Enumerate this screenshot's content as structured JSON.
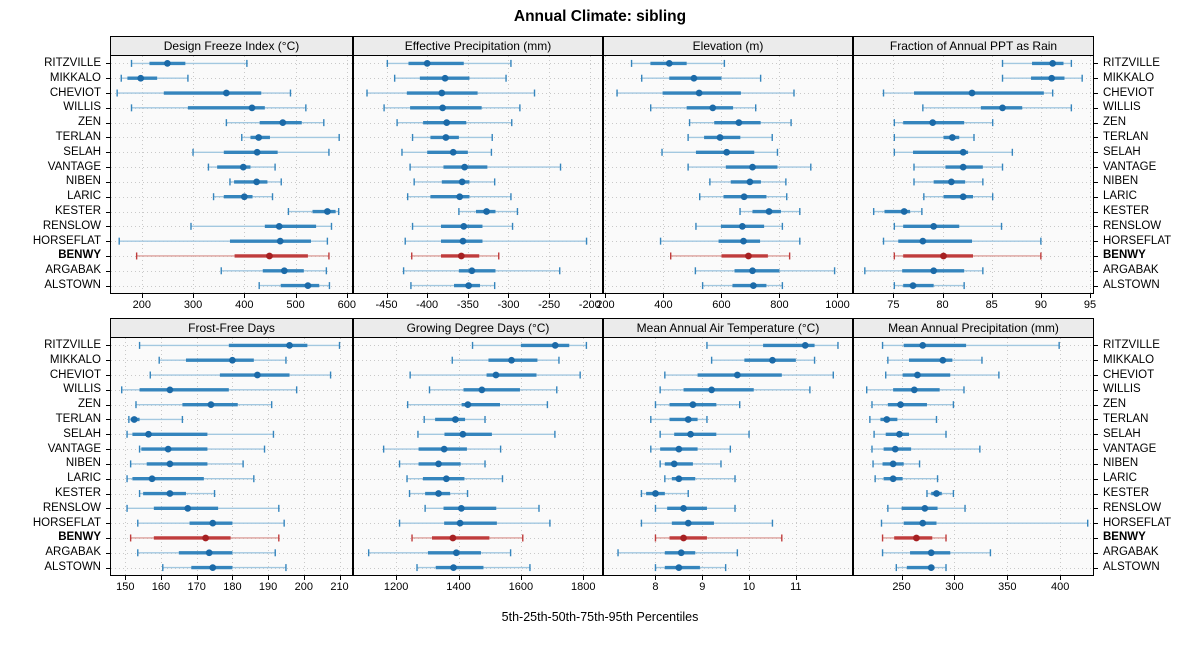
{
  "title": "Annual Climate: sibling",
  "caption": "5th-25th-50th-75th-95th Percentiles",
  "colors": {
    "panel_bg": "#fafafa",
    "strip_bg": "#ebebeb",
    "grid": "#c9c9c9",
    "border": "#000000",
    "blue_dot": "#1b6aa8",
    "blue_mid": "#3585bd",
    "blue_light": "#a3c8e0",
    "red_dot": "#a62022",
    "red_mid": "#c03c3c",
    "red_light": "#dca09b"
  },
  "chart_data": {
    "type": "scatter",
    "subtype": "trellis-percentile-dotplot",
    "title": "Annual Climate: sibling",
    "xlabel": "5th-25th-50th-75th-95th Percentiles",
    "percentiles": [
      5,
      25,
      50,
      75,
      95
    ],
    "grid": "dotted",
    "layout": {
      "rows": 2,
      "cols": 4,
      "station_labels": "left-and-right"
    },
    "highlight": "BENWY",
    "stations": [
      "RITZVILLE",
      "MIKKALO",
      "CHEVIOT",
      "WILLIS",
      "ZEN",
      "TERLAN",
      "SELAH",
      "VANTAGE",
      "NIBEN",
      "LARIC",
      "KESTER",
      "RENSLOW",
      "HORSEFLAT",
      "BENWY",
      "ARGABAK",
      "ALSTOWN"
    ],
    "panels": [
      {
        "title": "Design Freeze Index (°C)",
        "xlim": [
          140,
          610
        ],
        "ticks": [
          200,
          300,
          400,
          500,
          600
        ],
        "values": [
          [
            180,
            215,
            250,
            285,
            405
          ],
          [
            160,
            172,
            198,
            230,
            290
          ],
          [
            152,
            243,
            365,
            433,
            490
          ],
          [
            180,
            290,
            415,
            440,
            520
          ],
          [
            365,
            430,
            475,
            512,
            555
          ],
          [
            395,
            412,
            428,
            450,
            585
          ],
          [
            300,
            360,
            425,
            465,
            565
          ],
          [
            330,
            347,
            398,
            412,
            460
          ],
          [
            372,
            380,
            424,
            445,
            472
          ],
          [
            340,
            360,
            400,
            416,
            455
          ],
          [
            486,
            533,
            562,
            578,
            584
          ],
          [
            296,
            440,
            468,
            540,
            570
          ],
          [
            156,
            372,
            470,
            530,
            562
          ],
          [
            190,
            381,
            449,
            524,
            565
          ],
          [
            355,
            436,
            478,
            516,
            560
          ],
          [
            429,
            471,
            524,
            546,
            566
          ]
        ]
      },
      {
        "title": "Effective Precipitation (mm)",
        "xlim": [
          -490,
          -185
        ],
        "ticks": [
          -450,
          -400,
          -350,
          -300,
          -250,
          -200
        ],
        "values": [
          [
            -449,
            -423,
            -400,
            -355,
            -297
          ],
          [
            -440,
            -409,
            -378,
            -348,
            -303
          ],
          [
            -474,
            -425,
            -382,
            -338,
            -268
          ],
          [
            -453,
            -421,
            -381,
            -333,
            -286
          ],
          [
            -437,
            -405,
            -376,
            -352,
            -296
          ],
          [
            -418,
            -396,
            -377,
            -361,
            -320
          ],
          [
            -431,
            -400,
            -368,
            -350,
            -321
          ],
          [
            -421,
            -380,
            -354,
            -326,
            -236
          ],
          [
            -416,
            -382,
            -357,
            -348,
            -317
          ],
          [
            -424,
            -396,
            -360,
            -348,
            -297
          ],
          [
            -361,
            -340,
            -327,
            -316,
            -289
          ],
          [
            -418,
            -383,
            -355,
            -332,
            -295
          ],
          [
            -427,
            -383,
            -356,
            -332,
            -204
          ],
          [
            -419,
            -383,
            -358,
            -336,
            -312
          ],
          [
            -429,
            -361,
            -345,
            -316,
            -237
          ],
          [
            -420,
            -367,
            -349,
            -335,
            -317
          ]
        ]
      },
      {
        "title": "Elevation (m)",
        "xlim": [
          195,
          1050
        ],
        "ticks": [
          200,
          400,
          600,
          800,
          1000
        ],
        "values": [
          [
            290,
            355,
            420,
            480,
            610
          ],
          [
            325,
            420,
            505,
            600,
            735
          ],
          [
            240,
            397,
            523,
            667,
            850
          ],
          [
            356,
            480,
            570,
            640,
            718
          ],
          [
            490,
            575,
            660,
            735,
            840
          ],
          [
            485,
            540,
            595,
            665,
            775
          ],
          [
            395,
            512,
            618,
            713,
            793
          ],
          [
            485,
            615,
            707,
            793,
            908
          ],
          [
            560,
            632,
            698,
            736,
            822
          ],
          [
            525,
            607,
            678,
            755,
            825
          ],
          [
            664,
            707,
            764,
            805,
            870
          ],
          [
            512,
            598,
            672,
            747,
            810
          ],
          [
            390,
            590,
            676,
            733,
            870
          ],
          [
            425,
            600,
            693,
            760,
            835
          ],
          [
            510,
            645,
            707,
            800,
            990
          ],
          [
            535,
            638,
            710,
            755,
            810
          ]
        ]
      },
      {
        "title": "Fraction of Annual PPT as Rain",
        "xlim": [
          71,
          95.3
        ],
        "ticks": [
          75,
          80,
          85,
          90,
          95
        ],
        "values": [
          [
            86.1,
            89.1,
            91.2,
            92.3,
            93.1
          ],
          [
            86.1,
            89.0,
            91.1,
            92.4,
            94.2
          ],
          [
            74.0,
            77.1,
            83.0,
            90.3,
            91.2
          ],
          [
            78.0,
            83.9,
            86.1,
            88.1,
            93.1
          ],
          [
            75.1,
            76.0,
            79.0,
            82.2,
            85.1
          ],
          [
            75.1,
            80.1,
            81.0,
            81.7,
            83.2
          ],
          [
            75.1,
            77.0,
            82.1,
            82.6,
            87.1
          ],
          [
            77.1,
            80.3,
            82.1,
            84.1,
            86.1
          ],
          [
            77.1,
            79.1,
            80.9,
            82.3,
            84.1
          ],
          [
            78.1,
            80.1,
            82.1,
            83.1,
            85.1
          ],
          [
            73.0,
            74.1,
            76.1,
            76.7,
            77.9
          ],
          [
            75.1,
            76.0,
            79.1,
            81.7,
            86.0
          ],
          [
            74.0,
            75.5,
            78.0,
            83.0,
            90.0
          ],
          [
            75.1,
            76.0,
            80.1,
            83.1,
            90.0
          ],
          [
            72.1,
            75.9,
            79.1,
            82.2,
            84.1
          ],
          [
            75.1,
            76.0,
            77.0,
            79.1,
            82.2
          ]
        ]
      },
      {
        "title": "Frost-Free Days",
        "xlim": [
          146,
          213.5
        ],
        "ticks": [
          150,
          160,
          170,
          180,
          190,
          200,
          210
        ],
        "values": [
          [
            154,
            179,
            196,
            201,
            210
          ],
          [
            159.5,
            167,
            180,
            186,
            195
          ],
          [
            157,
            176.5,
            187,
            196,
            207.5
          ],
          [
            149,
            154,
            162.5,
            179,
            198
          ],
          [
            153,
            166,
            174,
            181.5,
            191
          ],
          [
            151,
            151.5,
            152.5,
            154,
            166
          ],
          [
            150.5,
            152,
            156.5,
            173,
            191.5
          ],
          [
            154,
            154.5,
            162,
            173,
            189
          ],
          [
            151.5,
            156,
            162.5,
            173,
            183
          ],
          [
            150.5,
            152,
            157.5,
            172,
            186
          ],
          [
            154,
            155,
            162.5,
            167,
            175
          ],
          [
            150.5,
            158,
            167.5,
            176,
            193
          ],
          [
            153.5,
            168,
            174.5,
            180,
            194.5
          ],
          [
            151.5,
            158,
            172.5,
            179.5,
            193
          ],
          [
            153.5,
            165,
            173.5,
            180,
            192
          ],
          [
            160.5,
            168.5,
            174.5,
            180,
            195
          ]
        ]
      },
      {
        "title": "Growing Degree Days (°C)",
        "xlim": [
          1065,
          1860
        ],
        "ticks": [
          1200,
          1400,
          1600,
          1800
        ],
        "values": [
          [
            1445,
            1600,
            1710,
            1755,
            1810
          ],
          [
            1380,
            1496,
            1570,
            1653,
            1722
          ],
          [
            1245,
            1490,
            1520,
            1650,
            1790
          ],
          [
            1307,
            1416,
            1475,
            1597,
            1715
          ],
          [
            1237,
            1410,
            1430,
            1533,
            1685
          ],
          [
            1290,
            1325,
            1390,
            1421,
            1485
          ],
          [
            1270,
            1355,
            1414,
            1507,
            1709
          ],
          [
            1160,
            1272,
            1354,
            1427,
            1535
          ],
          [
            1211,
            1272,
            1336,
            1407,
            1485
          ],
          [
            1235,
            1286,
            1361,
            1419,
            1541
          ],
          [
            1243,
            1293,
            1336,
            1373,
            1429
          ],
          [
            1293,
            1352,
            1409,
            1521,
            1658
          ],
          [
            1211,
            1354,
            1405,
            1523,
            1693
          ],
          [
            1251,
            1315,
            1382,
            1499,
            1606
          ],
          [
            1112,
            1302,
            1393,
            1472,
            1567
          ],
          [
            1267,
            1327,
            1384,
            1480,
            1629
          ]
        ]
      },
      {
        "title": "Mean Annual Air Temperature (°C)",
        "xlim": [
          6.9,
          12.2
        ],
        "ticks": [
          8,
          9,
          10,
          11
        ],
        "values": [
          [
            9.1,
            10.3,
            11.2,
            11.4,
            11.9
          ],
          [
            9.2,
            9.9,
            10.5,
            11.0,
            11.4
          ],
          [
            8.2,
            8.9,
            9.75,
            10.7,
            11.8
          ],
          [
            8.1,
            8.6,
            9.2,
            10.1,
            11.3
          ],
          [
            8.0,
            8.3,
            8.8,
            9.3,
            9.8
          ],
          [
            7.9,
            8.3,
            8.7,
            8.9,
            9.1
          ],
          [
            8.1,
            8.4,
            8.75,
            9.3,
            10.0
          ],
          [
            7.9,
            8.1,
            8.5,
            8.9,
            9.6
          ],
          [
            8.1,
            8.2,
            8.4,
            8.8,
            9.4
          ],
          [
            8.2,
            8.35,
            8.5,
            8.85,
            9.7
          ],
          [
            7.7,
            7.8,
            8.0,
            8.2,
            8.7
          ],
          [
            8.0,
            8.25,
            8.6,
            9.1,
            9.7
          ],
          [
            7.7,
            8.35,
            8.7,
            9.25,
            10.5
          ],
          [
            8.0,
            8.3,
            8.6,
            9.1,
            10.7
          ],
          [
            7.2,
            8.2,
            8.55,
            8.85,
            9.75
          ],
          [
            8.0,
            8.2,
            8.5,
            8.95,
            9.5
          ]
        ]
      },
      {
        "title": "Mean Annual Precipitation (mm)",
        "xlim": [
          205,
          431
        ],
        "ticks": [
          250,
          300,
          350,
          400
        ],
        "values": [
          [
            232,
            252,
            270,
            311,
            399
          ],
          [
            237,
            257,
            289,
            298,
            326
          ],
          [
            235,
            251,
            265,
            296,
            342
          ],
          [
            217,
            242,
            262,
            286,
            309
          ],
          [
            222,
            237,
            249,
            274,
            299
          ],
          [
            220,
            230,
            236,
            246,
            283
          ],
          [
            224,
            235,
            248,
            257,
            292
          ],
          [
            222,
            233,
            244,
            259,
            324
          ],
          [
            223,
            232,
            242,
            252,
            267
          ],
          [
            225,
            233,
            242,
            251,
            284
          ],
          [
            274,
            278,
            283,
            288,
            299
          ],
          [
            237,
            250,
            272,
            284,
            310
          ],
          [
            231,
            252,
            270,
            283,
            426
          ],
          [
            232,
            243,
            264,
            279,
            292
          ],
          [
            232,
            258,
            278,
            296,
            334
          ],
          [
            245,
            255,
            278,
            281,
            292
          ]
        ]
      }
    ]
  }
}
